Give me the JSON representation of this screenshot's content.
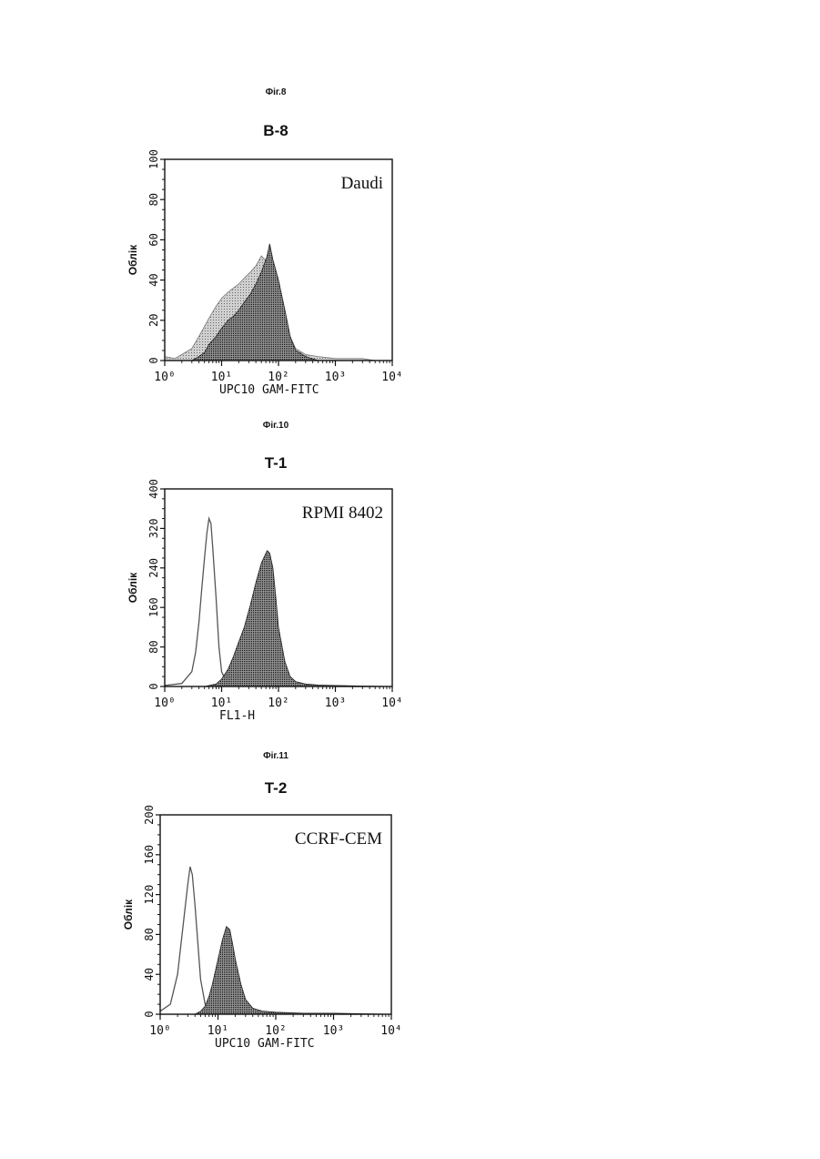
{
  "chart_data": [
    {
      "type": "area",
      "figure_caption": "Фіг.8",
      "title": "B-8",
      "annotation": "Daudi",
      "xlabel": "UPC10 GAM-FITC",
      "ylabel": "Облік",
      "x_scale": "log",
      "xlim": [
        1,
        10000
      ],
      "ylim": [
        0,
        100
      ],
      "y_ticks": [
        0,
        20,
        40,
        60,
        80,
        100
      ],
      "x_tick_labels": [
        "10⁰",
        "10¹",
        "10²",
        "10³",
        "10⁴"
      ],
      "series": [
        {
          "style": "filled-light",
          "x": [
            1,
            1.5,
            2,
            3,
            4,
            5,
            6,
            8,
            10,
            13,
            16,
            20,
            25,
            32,
            40,
            50,
            63,
            80,
            100,
            130,
            160,
            200,
            300,
            500,
            1000,
            2000,
            3000,
            5000,
            10000
          ],
          "y": [
            2,
            1,
            3,
            6,
            12,
            17,
            21,
            27,
            31,
            34,
            36,
            38,
            41,
            44,
            47,
            52,
            49,
            43,
            36,
            24,
            12,
            6,
            3,
            2,
            1,
            1,
            1,
            0,
            0
          ]
        },
        {
          "style": "filled-dark",
          "x": [
            3,
            4,
            5,
            6,
            8,
            10,
            13,
            16,
            20,
            25,
            32,
            40,
            50,
            63,
            70,
            80,
            100,
            130,
            160,
            200,
            300,
            500
          ],
          "y": [
            0,
            2,
            4,
            8,
            12,
            16,
            20,
            22,
            25,
            29,
            33,
            38,
            44,
            52,
            58,
            50,
            40,
            25,
            12,
            5,
            2,
            0
          ]
        }
      ]
    },
    {
      "type": "area",
      "figure_caption": "Фіг.10",
      "title": "T-1",
      "annotation": "RPMI 8402",
      "xlabel": "FL1-H",
      "ylabel": "Облік",
      "x_scale": "log",
      "xlim": [
        1,
        10000
      ],
      "ylim": [
        0,
        400
      ],
      "y_ticks": [
        0,
        80,
        160,
        240,
        320,
        400
      ],
      "x_tick_labels": [
        "10⁰",
        "10¹",
        "10²",
        "10³",
        "10⁴"
      ],
      "series": [
        {
          "style": "outline",
          "x": [
            1,
            2,
            3,
            3.5,
            4,
            4.5,
            5,
            5.5,
            6,
            6.5,
            7,
            8,
            9,
            10,
            12,
            15,
            20,
            30,
            50
          ],
          "y": [
            2,
            6,
            30,
            70,
            130,
            200,
            260,
            310,
            340,
            330,
            280,
            180,
            80,
            30,
            10,
            4,
            2,
            1,
            0
          ]
        },
        {
          "style": "filled-dark",
          "x": [
            5,
            8,
            10,
            13,
            16,
            20,
            25,
            32,
            40,
            50,
            63,
            70,
            80,
            90,
            100,
            130,
            160,
            200,
            300,
            500,
            1000,
            3000,
            10000
          ],
          "y": [
            0,
            5,
            15,
            35,
            60,
            90,
            120,
            165,
            210,
            250,
            275,
            270,
            240,
            180,
            120,
            50,
            20,
            10,
            5,
            3,
            2,
            1,
            0
          ]
        }
      ]
    },
    {
      "type": "area",
      "figure_caption": "Фіг.11",
      "title": "T-2",
      "annotation": "CCRF-CEM",
      "xlabel": "UPC10 GAM-FITC",
      "ylabel": "Облік",
      "x_scale": "log",
      "xlim": [
        1,
        10000
      ],
      "ylim": [
        0,
        200
      ],
      "y_ticks": [
        0,
        40,
        80,
        120,
        160,
        200
      ],
      "x_tick_labels": [
        "10⁰",
        "10¹",
        "10²",
        "10³",
        "10⁴"
      ],
      "series": [
        {
          "style": "outline",
          "x": [
            1,
            1.5,
            2,
            2.5,
            3,
            3.3,
            3.6,
            4,
            4.5,
            5,
            6,
            7,
            8,
            10,
            15
          ],
          "y": [
            3,
            10,
            40,
            90,
            130,
            148,
            140,
            110,
            70,
            35,
            10,
            4,
            2,
            1,
            0
          ]
        },
        {
          "style": "filled-dark",
          "x": [
            4,
            5,
            6,
            7,
            8,
            10,
            12,
            14,
            16,
            18,
            20,
            25,
            30,
            40,
            60,
            100,
            300,
            1000,
            10000
          ],
          "y": [
            0,
            3,
            8,
            18,
            30,
            55,
            75,
            88,
            85,
            70,
            55,
            30,
            15,
            6,
            3,
            2,
            1,
            1,
            0
          ]
        }
      ]
    }
  ]
}
